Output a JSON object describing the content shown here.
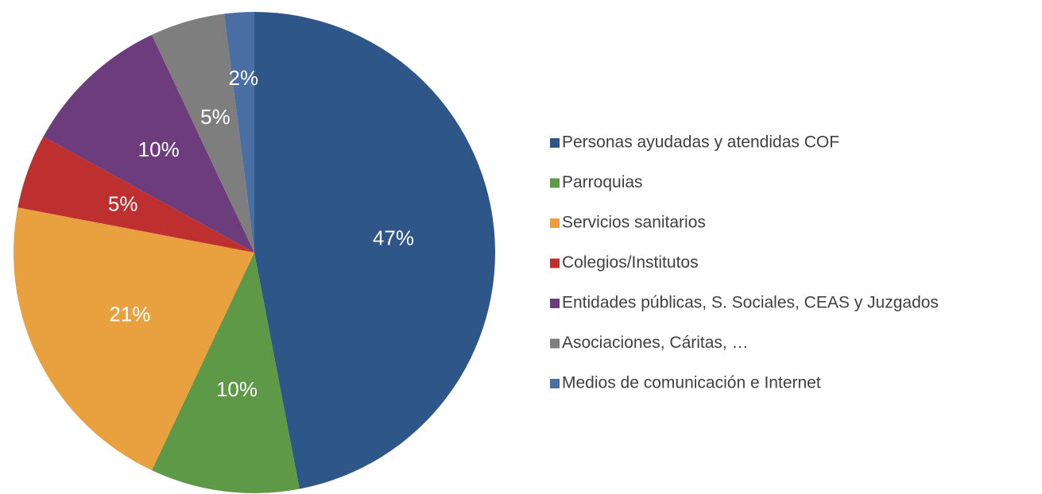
{
  "chart_data": {
    "type": "pie",
    "categories": [
      "Personas ayudadas y atendidas COF",
      "Parroquias",
      "Servicios sanitarios",
      "Colegios/Institutos",
      "Entidades públicas, S. Sociales, CEAS y Juzgados",
      "Asociaciones, Cáritas, …",
      "Medios de comunicación e Internet"
    ],
    "values": [
      47,
      10,
      21,
      5,
      10,
      5,
      2
    ],
    "value_labels": [
      "47%",
      "10%",
      "21%",
      "5%",
      "10%",
      "5%",
      "2%"
    ],
    "colors": [
      "#2f5689",
      "#5e9947",
      "#e8a13e",
      "#be2f2f",
      "#6d3c7c",
      "#7e7e7e",
      "#4a6fa5"
    ],
    "legend": "right"
  }
}
